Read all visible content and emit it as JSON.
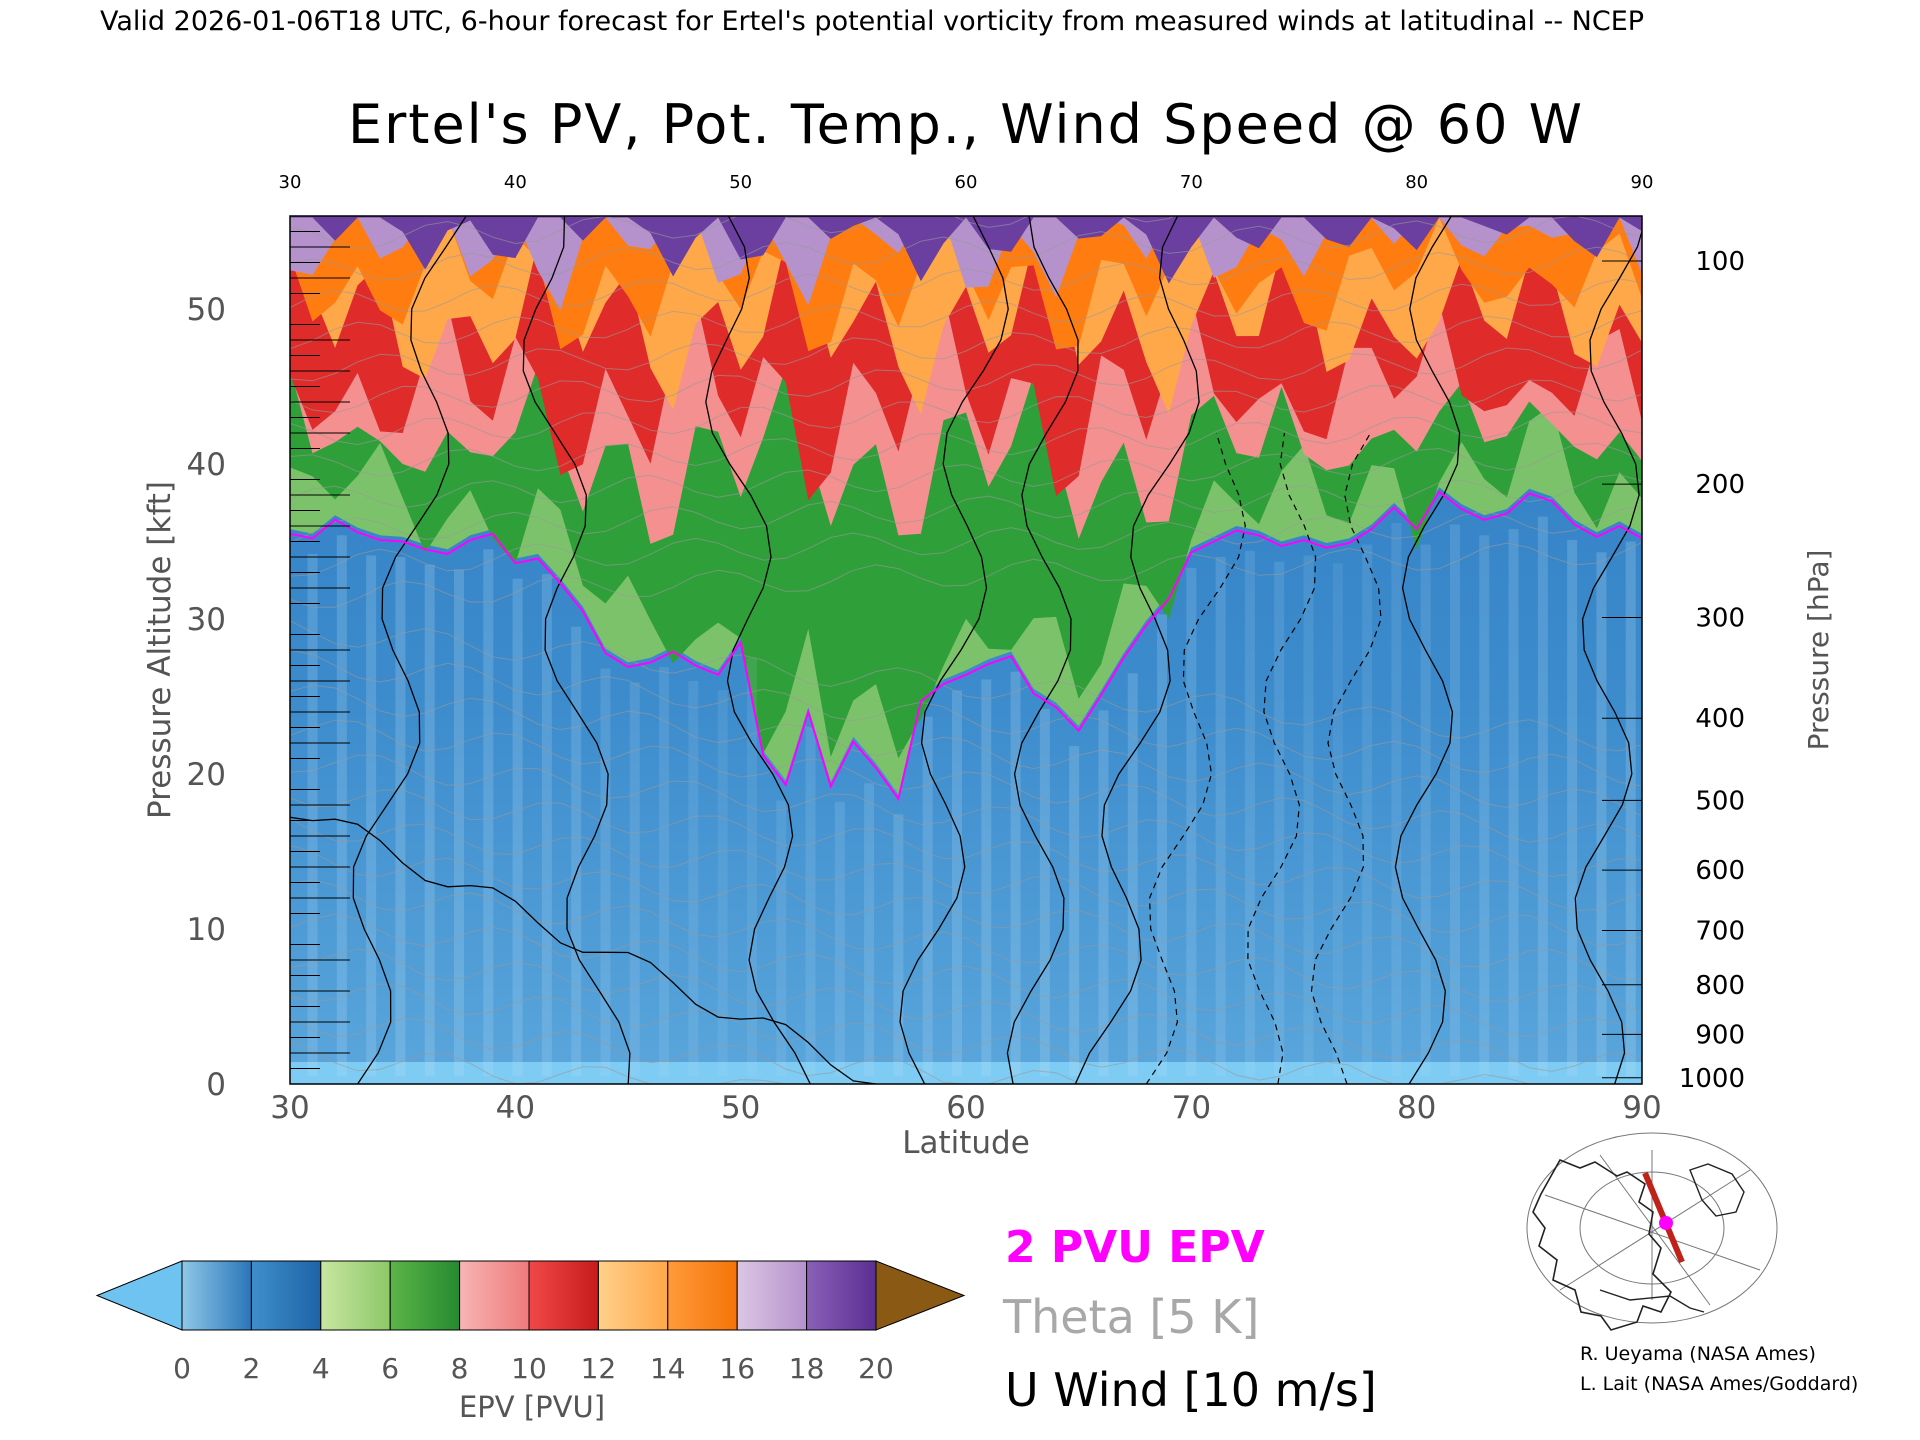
{
  "header": {
    "valid_line": "Valid 2026-01-06T18 UTC, 6-hour forecast for Ertel's potential vorticity from measured winds at latitudinal -- NCEP"
  },
  "chart_data": {
    "type": "heatmap",
    "title": "Ertel's PV, Pot. Temp., Wind Speed @ 60 W",
    "xlabel": "Latitude",
    "ylabel": "Pressure Altitude [kft]",
    "y2label": "Pressure [hPa]",
    "xlim": [
      30,
      90
    ],
    "ylim": [
      0,
      56
    ],
    "x_ticks": [
      "30",
      "40",
      "50",
      "60",
      "70",
      "80",
      "90"
    ],
    "y_ticks": [
      "0",
      "10",
      "20",
      "30",
      "40",
      "50"
    ],
    "pressure_ticks": [
      {
        "label": "100",
        "kft": 53.1
      },
      {
        "label": "200",
        "kft": 38.7
      },
      {
        "label": "300",
        "kft": 30.1
      },
      {
        "label": "400",
        "kft": 23.6
      },
      {
        "label": "500",
        "kft": 18.3
      },
      {
        "label": "600",
        "kft": 13.8
      },
      {
        "label": "700",
        "kft": 9.9
      },
      {
        "label": "800",
        "kft": 6.4
      },
      {
        "label": "900",
        "kft": 3.2
      },
      {
        "label": "1000",
        "kft": 0.4
      }
    ],
    "tropopause_2pvu_kft": [
      [
        30,
        35.5
      ],
      [
        31,
        35.2
      ],
      [
        32,
        36.4
      ],
      [
        33,
        35.6
      ],
      [
        34,
        35.1
      ],
      [
        35,
        35.0
      ],
      [
        36,
        34.5
      ],
      [
        37,
        34.2
      ],
      [
        38,
        35.1
      ],
      [
        39,
        35.5
      ],
      [
        40,
        33.6
      ],
      [
        41,
        33.9
      ],
      [
        42,
        32.3
      ],
      [
        43,
        30.5
      ],
      [
        44,
        27.8
      ],
      [
        45,
        26.9
      ],
      [
        46,
        27.2
      ],
      [
        47,
        27.9
      ],
      [
        48,
        27.0
      ],
      [
        49,
        26.4
      ],
      [
        50,
        28.5
      ],
      [
        51,
        21.2
      ],
      [
        52,
        19.3
      ],
      [
        53,
        24.0
      ],
      [
        54,
        19.2
      ],
      [
        55,
        22.1
      ],
      [
        56,
        20.4
      ],
      [
        57,
        18.4
      ],
      [
        58,
        24.7
      ],
      [
        59,
        25.8
      ],
      [
        60,
        26.4
      ],
      [
        61,
        27.1
      ],
      [
        62,
        27.6
      ],
      [
        63,
        25.2
      ],
      [
        64,
        24.3
      ],
      [
        65,
        22.8
      ],
      [
        66,
        25.1
      ],
      [
        67,
        27.5
      ],
      [
        68,
        29.6
      ],
      [
        69,
        31.3
      ],
      [
        70,
        34.3
      ],
      [
        71,
        35.0
      ],
      [
        72,
        35.7
      ],
      [
        73,
        35.4
      ],
      [
        74,
        34.7
      ],
      [
        75,
        35.1
      ],
      [
        76,
        34.6
      ],
      [
        77,
        34.9
      ],
      [
        78,
        35.8
      ],
      [
        79,
        37.2
      ],
      [
        80,
        35.8
      ],
      [
        81,
        38.2
      ],
      [
        82,
        37.1
      ],
      [
        83,
        36.4
      ],
      [
        84,
        36.8
      ],
      [
        85,
        38.1
      ],
      [
        86,
        37.6
      ],
      [
        87,
        36.1
      ],
      [
        88,
        35.3
      ],
      [
        89,
        36.0
      ],
      [
        90,
        35.2
      ]
    ],
    "upper_layer_bands": [
      {
        "level": "green",
        "range_pvu": [
          4,
          6
        ]
      },
      {
        "level": "red",
        "range_pvu": [
          8,
          10
        ]
      },
      {
        "level": "orange",
        "range_pvu": [
          10,
          14
        ]
      },
      {
        "level": "purple",
        "range_pvu": [
          14,
          18
        ]
      }
    ],
    "colorbar": {
      "label": "EPV [PVU]",
      "tick_labels": [
        "0",
        "2",
        "4",
        "6",
        "8",
        "10",
        "12",
        "14",
        "16",
        "18",
        "20"
      ],
      "colors": [
        "#6fc3f0",
        "#2a7fc3",
        "#9ecf7a",
        "#2f9f3a",
        "#f28a8a",
        "#e02b2b",
        "#ffa84a",
        "#ff7c10",
        "#c5a0d0",
        "#6a3fa0",
        "#f3ee8f",
        "#8a5a15"
      ]
    },
    "series_legend": [
      {
        "name": "2 PVU EPV",
        "color": "#ff00ff"
      },
      {
        "name": "Theta [5 K]",
        "color": "#a0a0a0"
      },
      {
        "name": "U Wind [10 m/s]",
        "color": "#000000"
      }
    ]
  },
  "credits": {
    "line1": "R. Ueyama (NASA Ames)",
    "line2": "L. Lait (NASA Ames/Goddard)"
  },
  "colors": {
    "tropopause_line": "#ff00ff",
    "stratosphere_green": "#3aa840",
    "stratosphere_red": "#e03a3a",
    "stratosphere_orange": "#ff8c1a",
    "stratosphere_purple": "#6a3fa0",
    "troposphere_blue": "#3a86c8"
  }
}
